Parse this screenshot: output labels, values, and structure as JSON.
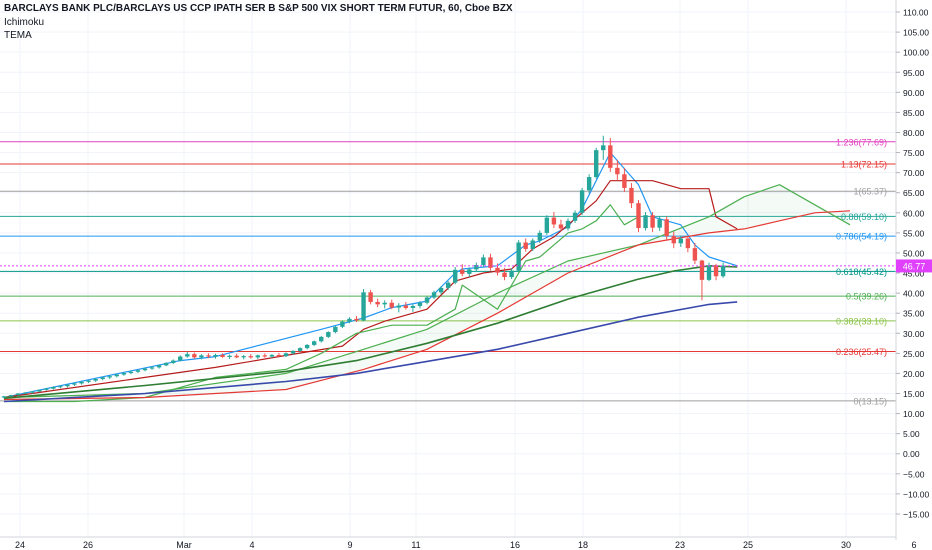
{
  "header": {
    "title": "BARCLAYS BANK PLC/BARCLAYS US CCP IPATH SER B S&P 500 VIX SHORT TERM FUTUR, 60, Cboe BZX",
    "indicator_1": "Ichimoku",
    "indicator_2": "TEMA"
  },
  "chart_data": {
    "type": "candlestick",
    "y_axis": {
      "min": -17.5,
      "max": 112,
      "ticks": [
        110,
        105,
        100,
        95,
        90,
        85,
        80,
        75,
        70,
        65,
        60,
        55,
        50,
        45,
        40,
        35,
        30,
        25,
        20,
        15,
        10,
        5,
        0,
        -5,
        -10,
        -15
      ],
      "tick_labels": [
        "110.00",
        "105.00",
        "100.00",
        "95.00",
        "90.00",
        "85.00",
        "80.00",
        "75.00",
        "70.00",
        "65.00",
        "60.00",
        "55.00",
        "50.00",
        "45.00",
        "40.00",
        "35.00",
        "30.00",
        "25.00",
        "20.00",
        "15.00",
        "10.00",
        "5.00",
        "0.00",
        "−5.00",
        "−10.00",
        "−15.00"
      ]
    },
    "x_axis": {
      "labels": [
        "24",
        "26",
        "Mar",
        "4",
        "9",
        "11",
        "16",
        "18",
        "23",
        "25",
        "30",
        "6"
      ]
    },
    "last_price": {
      "value": 46.77,
      "label": "46.77",
      "color": "#e040fb"
    },
    "fib_levels": [
      {
        "ratio": "1.236",
        "value": 77.69,
        "label": "1.236(77.69)",
        "color": "#e040c0"
      },
      {
        "ratio": "1.13",
        "value": 72.15,
        "label": "1.13(72.15)",
        "color": "#e53935"
      },
      {
        "ratio": "1",
        "value": 65.37,
        "label": "1(65.37)",
        "color": "#9e9e9e"
      },
      {
        "ratio": "0.88",
        "value": 59.1,
        "label": "0.88(59.10)",
        "color": "#26a69a"
      },
      {
        "ratio": "0.786",
        "value": 54.19,
        "label": "0.786(54.19)",
        "color": "#2196f3"
      },
      {
        "ratio": "0.618",
        "value": 45.42,
        "label": "0.618(45.42)",
        "color": "#009688"
      },
      {
        "ratio": "0.5",
        "value": 39.26,
        "label": "0.5(39.26)",
        "color": "#4caf50"
      },
      {
        "ratio": "0.382",
        "value": 33.1,
        "label": "0.382(33.10)",
        "color": "#8bc34a"
      },
      {
        "ratio": "0.236",
        "value": 25.47,
        "label": "0.236(25.47)",
        "color": "#e53935"
      },
      {
        "ratio": "0",
        "value": 13.15,
        "label": "0(13.15)",
        "color": "#9e9e9e"
      }
    ],
    "candles": [
      [
        14.0,
        14.4,
        13.8,
        14.3
      ],
      [
        14.3,
        14.7,
        14.1,
        14.6
      ],
      [
        14.6,
        15.1,
        14.4,
        15.0
      ],
      [
        15.0,
        15.4,
        14.8,
        15.2
      ],
      [
        15.2,
        15.6,
        14.9,
        15.5
      ],
      [
        15.5,
        16.0,
        15.3,
        15.9
      ],
      [
        15.9,
        16.4,
        15.7,
        16.2
      ],
      [
        16.2,
        16.8,
        16.0,
        16.6
      ],
      [
        16.6,
        17.0,
        16.3,
        16.8
      ],
      [
        16.8,
        17.3,
        16.5,
        17.2
      ],
      [
        17.2,
        17.7,
        16.9,
        17.5
      ],
      [
        17.5,
        18.1,
        17.2,
        17.9
      ],
      [
        17.9,
        18.4,
        17.6,
        18.2
      ],
      [
        18.2,
        18.8,
        17.9,
        18.6
      ],
      [
        18.6,
        19.2,
        18.3,
        19.0
      ],
      [
        19.0,
        19.5,
        18.6,
        19.3
      ],
      [
        19.3,
        19.9,
        19.0,
        19.7
      ],
      [
        19.7,
        20.3,
        19.4,
        20.1
      ],
      [
        20.1,
        20.7,
        19.8,
        20.4
      ],
      [
        20.4,
        21.0,
        20.1,
        20.8
      ],
      [
        20.8,
        21.4,
        20.5,
        21.2
      ],
      [
        21.2,
        21.8,
        20.9,
        21.5
      ],
      [
        21.5,
        22.2,
        21.2,
        22.0
      ],
      [
        22.0,
        22.8,
        21.8,
        22.6
      ],
      [
        22.6,
        23.5,
        22.3,
        23.2
      ],
      [
        23.2,
        24.5,
        23.0,
        24.2
      ],
      [
        24.2,
        25.4,
        23.9,
        24.8
      ],
      [
        24.8,
        25.2,
        23.6,
        24.0
      ],
      [
        24.0,
        24.8,
        23.5,
        24.5
      ],
      [
        24.5,
        25.0,
        23.8,
        24.2
      ],
      [
        24.2,
        24.9,
        23.7,
        24.6
      ],
      [
        24.6,
        25.0,
        23.9,
        24.1
      ],
      [
        24.1,
        24.7,
        23.6,
        24.4
      ],
      [
        24.4,
        24.9,
        23.8,
        24.0
      ],
      [
        24.0,
        24.6,
        23.5,
        24.3
      ],
      [
        24.3,
        24.8,
        23.7,
        24.0
      ],
      [
        24.0,
        24.7,
        23.6,
        24.5
      ],
      [
        24.5,
        25.0,
        23.9,
        24.2
      ],
      [
        24.2,
        24.8,
        23.8,
        24.6
      ],
      [
        24.6,
        25.1,
        24.0,
        24.3
      ],
      [
        24.3,
        25.2,
        24.1,
        25.0
      ],
      [
        25.0,
        25.8,
        24.7,
        25.6
      ],
      [
        25.6,
        26.5,
        25.3,
        26.3
      ],
      [
        26.3,
        27.3,
        26.0,
        27.1
      ],
      [
        27.1,
        28.2,
        26.8,
        28.0
      ],
      [
        28.0,
        29.3,
        27.7,
        29.1
      ],
      [
        29.1,
        30.5,
        28.8,
        30.3
      ],
      [
        30.3,
        31.8,
        30.0,
        31.6
      ],
      [
        31.6,
        33.2,
        31.3,
        32.9
      ],
      [
        32.9,
        34.0,
        32.5,
        33.6
      ],
      [
        33.6,
        34.3,
        32.8,
        33.2
      ],
      [
        33.2,
        41.0,
        33.0,
        40.2
      ],
      [
        40.2,
        40.8,
        37.2,
        37.8
      ],
      [
        37.8,
        38.6,
        36.5,
        37.2
      ],
      [
        37.2,
        38.2,
        36.2,
        37.6
      ],
      [
        37.6,
        38.4,
        36.0,
        36.4
      ],
      [
        36.4,
        37.5,
        35.2,
        36.9
      ],
      [
        36.9,
        37.8,
        35.9,
        36.3
      ],
      [
        36.3,
        37.2,
        35.3,
        36.8
      ],
      [
        36.8,
        38.0,
        36.2,
        37.6
      ],
      [
        37.6,
        39.2,
        37.2,
        38.9
      ],
      [
        38.9,
        40.6,
        38.5,
        40.2
      ],
      [
        40.2,
        41.7,
        39.6,
        41.3
      ],
      [
        41.3,
        43.0,
        40.8,
        42.6
      ],
      [
        42.6,
        46.5,
        42.2,
        45.8
      ],
      [
        45.8,
        47.2,
        44.2,
        44.8
      ],
      [
        44.8,
        46.4,
        44.0,
        45.9
      ],
      [
        45.9,
        47.6,
        45.3,
        47.0
      ],
      [
        47.0,
        49.6,
        46.5,
        48.9
      ],
      [
        48.9,
        49.8,
        45.6,
        46.3
      ],
      [
        46.3,
        47.4,
        44.4,
        45.1
      ],
      [
        45.1,
        46.3,
        43.2,
        44.0
      ],
      [
        44.0,
        46.2,
        43.5,
        45.6
      ],
      [
        45.6,
        53.2,
        45.2,
        52.6
      ],
      [
        52.6,
        53.6,
        50.3,
        51.0
      ],
      [
        51.0,
        53.6,
        50.5,
        53.1
      ],
      [
        53.1,
        55.6,
        52.5,
        55.0
      ],
      [
        55.0,
        59.4,
        54.5,
        58.8
      ],
      [
        58.8,
        60.2,
        56.2,
        57.1
      ],
      [
        57.1,
        58.3,
        55.4,
        56.1
      ],
      [
        56.1,
        58.6,
        55.6,
        58.0
      ],
      [
        58.0,
        60.6,
        57.5,
        60.0
      ],
      [
        60.0,
        66.2,
        59.5,
        65.6
      ],
      [
        65.6,
        69.6,
        64.8,
        68.9
      ],
      [
        68.9,
        76.2,
        68.5,
        75.6
      ],
      [
        75.6,
        79.2,
        73.2,
        76.8
      ],
      [
        76.8,
        78.6,
        70.2,
        71.2
      ],
      [
        71.2,
        73.2,
        68.2,
        69.6
      ],
      [
        69.6,
        71.2,
        65.2,
        66.2
      ],
      [
        66.2,
        67.4,
        61.2,
        62.4
      ],
      [
        62.4,
        63.2,
        55.2,
        56.2
      ],
      [
        56.2,
        60.2,
        55.6,
        59.4
      ],
      [
        59.4,
        60.2,
        55.2,
        56.3
      ],
      [
        56.3,
        59.2,
        55.5,
        58.4
      ],
      [
        58.4,
        59.1,
        53.2,
        54.2
      ],
      [
        54.2,
        55.3,
        51.2,
        52.4
      ],
      [
        52.4,
        54.3,
        51.5,
        53.6
      ],
      [
        53.6,
        54.2,
        50.2,
        51.2
      ],
      [
        51.2,
        52.5,
        47.2,
        48.1
      ],
      [
        48.1,
        48.3,
        38.2,
        43.3
      ],
      [
        43.3,
        47.6,
        43.0,
        46.9
      ],
      [
        46.9,
        47.3,
        43.2,
        44.2
      ],
      [
        44.2,
        47.6,
        43.8,
        46.8
      ]
    ],
    "series": [
      {
        "name": "Ichimoku Conversion Line",
        "color": "#2196f3",
        "x": [
          0,
          25,
          30,
          45,
          51,
          55,
          60,
          64,
          65,
          70,
          74,
          76,
          80,
          82,
          84,
          86,
          90,
          92,
          96,
          98,
          100,
          104
        ],
        "y": [
          14.0,
          23.2,
          24.2,
          31.0,
          33.8,
          36.4,
          38.0,
          45.0,
          46.0,
          46.8,
          52.0,
          53.0,
          56.5,
          61.0,
          68.0,
          75.0,
          67.0,
          59.0,
          57.0,
          52.0,
          49.0,
          46.8
        ]
      },
      {
        "name": "Ichimoku Base Line",
        "color": "#b71c1c",
        "x": [
          0,
          20,
          30,
          40,
          48,
          51,
          54,
          60,
          64,
          68,
          72,
          75,
          78,
          80,
          84,
          86,
          92,
          96,
          100,
          101,
          104
        ],
        "y": [
          14.0,
          19.0,
          21.5,
          24.5,
          26.8,
          31.0,
          33.0,
          36.0,
          43.0,
          45.0,
          46.0,
          51.0,
          54.0,
          57.0,
          63.0,
          68.0,
          68.0,
          66.0,
          66.0,
          59.0,
          56.0
        ]
      },
      {
        "name": "Ichimoku Lagging Span",
        "color": "#4caf50",
        "x": [
          0,
          10,
          20,
          30,
          40,
          45,
          50,
          55,
          60,
          64,
          65,
          70,
          74,
          76,
          80,
          82,
          84,
          86,
          88,
          90
        ],
        "y": [
          13.0,
          13.0,
          14.0,
          19.0,
          21.0,
          25.0,
          30.0,
          32.0,
          32.0,
          36.0,
          42.0,
          36.0,
          48.0,
          49.0,
          55.0,
          56.0,
          58.0,
          62.0,
          57.0,
          59.0
        ]
      },
      {
        "name": "Ichimoku Leading Span A",
        "color": "#4caf50",
        "x": [
          0,
          20,
          40,
          51,
          60,
          70,
          80,
          90,
          100,
          105,
          110,
          115,
          120
        ],
        "y": [
          14.0,
          15.0,
          20.0,
          26.0,
          31.0,
          40.0,
          48.0,
          52.0,
          59.0,
          64.0,
          67.0,
          62.0,
          57.0
        ]
      },
      {
        "name": "Ichimoku Leading Span B",
        "color": "#e53935",
        "x": [
          0,
          20,
          40,
          51,
          60,
          70,
          80,
          90,
          100,
          105,
          110,
          115,
          120
        ],
        "y": [
          13.5,
          14.0,
          16.0,
          21.0,
          26.0,
          35.0,
          45.0,
          52.0,
          55.0,
          56.0,
          58.0,
          60.0,
          60.5
        ]
      },
      {
        "name": "TEMA",
        "color": "#2e7d32",
        "x": [
          0,
          20,
          40,
          50,
          60,
          70,
          80,
          90,
          95,
          100,
          104
        ],
        "y": [
          13.8,
          17.0,
          20.5,
          23.2,
          27.5,
          32.5,
          38.5,
          43.5,
          45.5,
          46.8,
          46.5
        ]
      },
      {
        "name": "Moving Average",
        "color": "#3949ab",
        "x": [
          0,
          20,
          40,
          50,
          60,
          70,
          80,
          90,
          100,
          104
        ],
        "y": [
          13.0,
          15.0,
          18.0,
          20.0,
          23.0,
          26.0,
          30.0,
          34.0,
          37.2,
          37.8
        ]
      }
    ]
  }
}
